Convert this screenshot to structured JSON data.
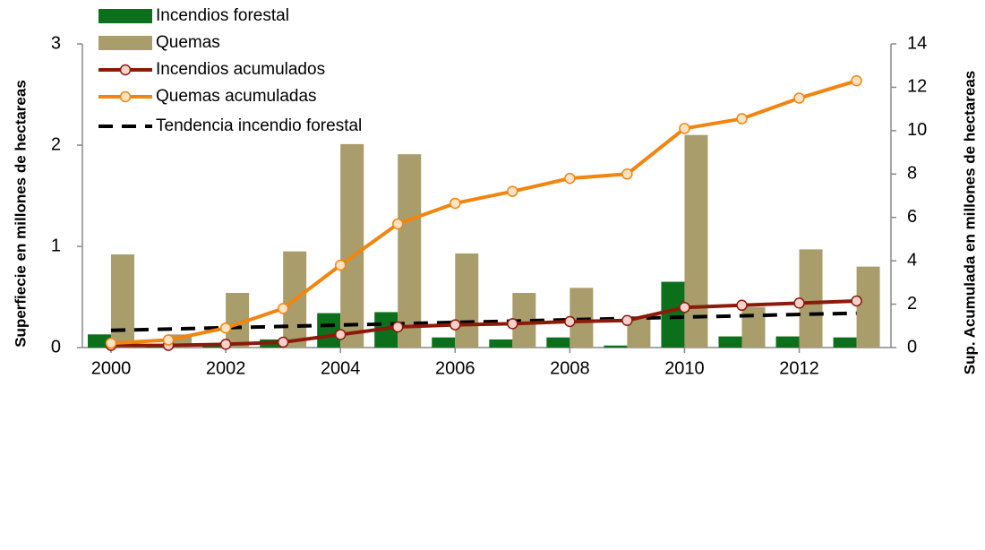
{
  "chart_data": {
    "type": "bar",
    "ylabel": "Superfiecie en millones de hectareas",
    "y2label": "Sup. Acumulada en millones de hectareas",
    "x": [
      2000,
      2001,
      2002,
      2003,
      2004,
      2005,
      2006,
      2007,
      2008,
      2009,
      2010,
      2011,
      2012,
      2013
    ],
    "xlim": [
      1999.5,
      2013.6
    ],
    "xticks": [
      2000,
      2002,
      2004,
      2006,
      2008,
      2010,
      2012
    ],
    "ylim": [
      0,
      3
    ],
    "yticks": [
      0,
      1,
      2,
      3
    ],
    "y2lim": [
      0,
      14
    ],
    "y2ticks": [
      0,
      2,
      4,
      6,
      8,
      10,
      12,
      14
    ],
    "series": [
      {
        "name": "Incendios forestal",
        "type": "bar",
        "color": "#0b6f1b",
        "values": [
          0.13,
          0.01,
          0.04,
          0.08,
          0.34,
          0.35,
          0.1,
          0.08,
          0.1,
          0.02,
          0.65,
          0.11,
          0.11,
          0.1
        ]
      },
      {
        "name": "Quemas",
        "type": "bar",
        "color": "#a99d6b",
        "values": [
          0.92,
          0.13,
          0.54,
          0.95,
          2.01,
          1.91,
          0.93,
          0.54,
          0.59,
          0.3,
          2.1,
          0.4,
          0.97,
          0.8
        ]
      },
      {
        "name": "Incendios acumulados",
        "type": "line",
        "axis": "y2",
        "color": "#8c1a0b",
        "marker_fill": "#f6d2cc",
        "values": [
          0.1,
          0.1,
          0.15,
          0.25,
          0.6,
          0.95,
          1.05,
          1.1,
          1.2,
          1.25,
          1.85,
          1.95,
          2.05,
          2.15
        ]
      },
      {
        "name": "Quemas acumuladas",
        "type": "line",
        "axis": "y2",
        "color": "#f08510",
        "marker_fill": "#fde2c4",
        "values": [
          0.2,
          0.35,
          0.9,
          1.8,
          3.8,
          5.7,
          6.65,
          7.2,
          7.8,
          8.0,
          10.1,
          10.55,
          11.5,
          12.3
        ]
      },
      {
        "name": "Tendencia incendio forestal",
        "type": "dashed",
        "color": "#000000",
        "x": [
          2000,
          2013
        ],
        "values": [
          0.17,
          0.34
        ]
      }
    ]
  }
}
